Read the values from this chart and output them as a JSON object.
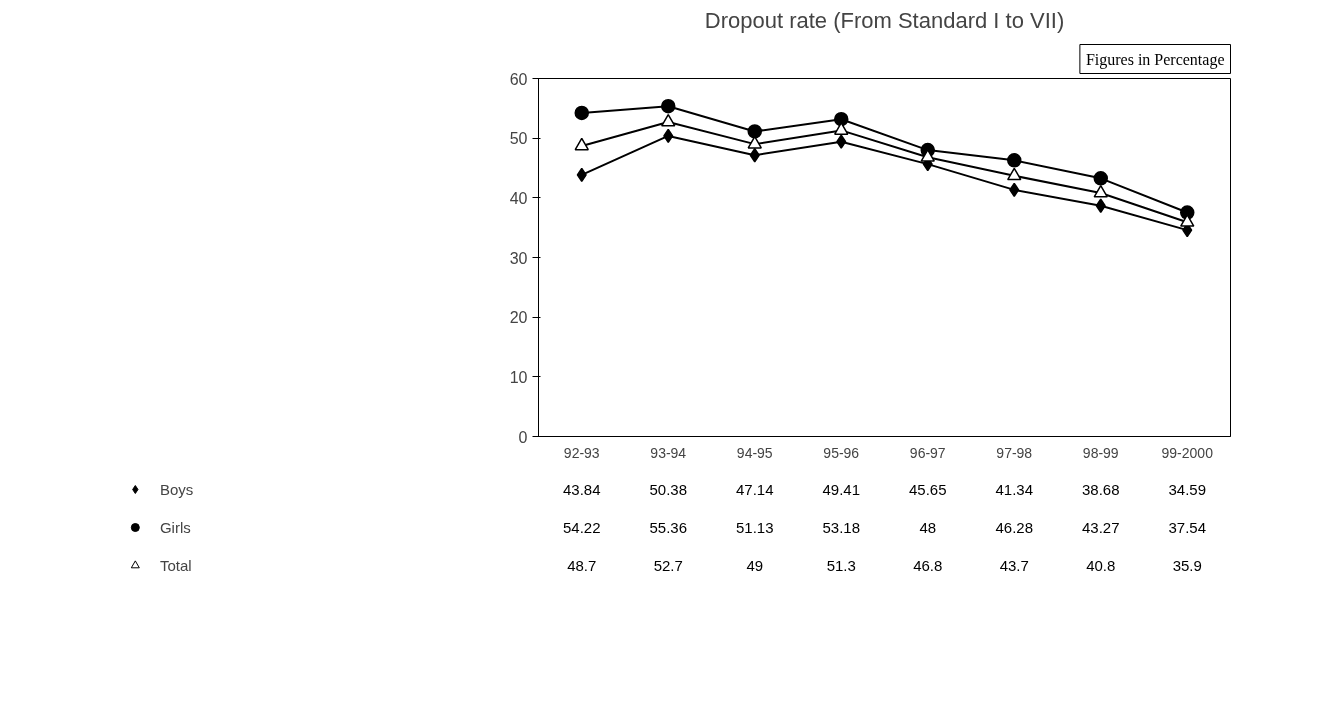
{
  "chart_data": {
    "type": "line",
    "title": "Dropout rate (From Standard I to VII)",
    "annotations": [
      "Figures in Percentage"
    ],
    "categories": [
      "92-93",
      "93-94",
      "94-95",
      "95-96",
      "96-97",
      "97-98",
      "98-99",
      "99-2000"
    ],
    "series": [
      {
        "name": "Boys",
        "color": "#000000",
        "marker": "diamond",
        "values": [
          43.84,
          50.38,
          47.14,
          49.41,
          45.65,
          41.34,
          38.68,
          34.59
        ]
      },
      {
        "name": "Girls",
        "color": "#000000",
        "marker": "circle",
        "values": [
          54.22,
          55.36,
          51.13,
          53.18,
          48,
          46.28,
          43.27,
          37.54
        ]
      },
      {
        "name": "Total",
        "color": "#000000",
        "marker": "triangle",
        "values": [
          48.7,
          52.7,
          49,
          51.3,
          46.8,
          43.7,
          40.8,
          35.9
        ]
      }
    ],
    "ylim": [
      0,
      60
    ],
    "yticks": [
      0,
      10,
      20,
      30,
      40,
      50,
      60
    ],
    "data_labels": true,
    "legend": "bottom left",
    "grid": false,
    "line_style": "solid"
  }
}
